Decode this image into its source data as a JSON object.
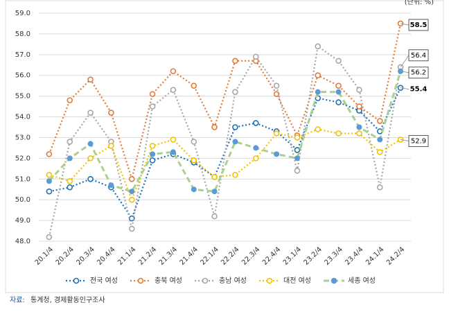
{
  "chart_data": {
    "type": "line",
    "unit": "(단위: %)",
    "categories": [
      "20.1/4",
      "20.2/4",
      "20.3/4",
      "20.4/4",
      "21.1/4",
      "21.2/4",
      "21.3/4",
      "21.4/4",
      "22.1/4",
      "22.2/4",
      "22.3/4",
      "22.4/4",
      "23.1/4",
      "23.2/4",
      "23.3/4",
      "23.4/4",
      "24.1/4",
      "24.2/4"
    ],
    "series": [
      {
        "name": "전국 여성",
        "color": "#1f6fb5",
        "values": [
          50.4,
          50.6,
          51.0,
          50.6,
          49.1,
          51.9,
          52.2,
          51.8,
          51.1,
          53.5,
          53.7,
          53.3,
          52.4,
          54.9,
          54.7,
          54.3,
          53.3,
          55.4
        ]
      },
      {
        "name": "충북 여성",
        "color": "#e07b39",
        "values": [
          52.2,
          54.8,
          55.8,
          54.2,
          51.0,
          55.1,
          56.2,
          55.5,
          53.5,
          56.7,
          56.7,
          55.1,
          53.1,
          56.0,
          55.5,
          54.5,
          53.8,
          58.5
        ]
      },
      {
        "name": "충남 여성",
        "color": "#a6a6a6",
        "values": [
          48.2,
          52.8,
          54.2,
          52.8,
          48.6,
          54.5,
          55.3,
          52.8,
          49.2,
          55.2,
          56.9,
          55.5,
          51.4,
          57.4,
          56.7,
          55.3,
          50.6,
          56.4
        ]
      },
      {
        "name": "대전 여성",
        "color": "#f2c200",
        "values": [
          51.2,
          50.9,
          52.0,
          52.6,
          50.0,
          52.6,
          52.9,
          51.9,
          51.1,
          51.2,
          52.0,
          53.2,
          53.0,
          53.4,
          53.2,
          53.2,
          52.3,
          52.9
        ]
      },
      {
        "name": "세종 여성",
        "color": "#a9d18e",
        "marker_color": "#5b9bd5",
        "values": [
          50.9,
          52.0,
          52.7,
          50.7,
          50.4,
          52.2,
          52.3,
          50.5,
          50.4,
          52.8,
          52.5,
          52.2,
          52.0,
          55.2,
          55.2,
          53.5,
          52.9,
          56.2
        ]
      }
    ],
    "ylim": [
      48.0,
      59.0
    ],
    "yticks": [
      {
        "value": 48,
        "label": "48.0"
      },
      {
        "value": 49,
        "label": "49.0"
      },
      {
        "value": 50,
        "label": "50.0"
      },
      {
        "value": 51,
        "label": "51.0"
      },
      {
        "value": 52,
        "label": "52.0"
      },
      {
        "value": 53,
        "label": "53.0"
      },
      {
        "value": 54,
        "label": "54.0"
      },
      {
        "value": 55,
        "label": "55.0"
      },
      {
        "value": 56,
        "label": "56.0"
      },
      {
        "value": 57,
        "label": "57.0"
      },
      {
        "value": 58,
        "label": "58.0"
      },
      {
        "value": 59,
        "label": "59.0"
      }
    ],
    "grid": true,
    "legend": "bottom",
    "source_label": "자료:",
    "source": "통계청, 경제활동인구조사"
  }
}
